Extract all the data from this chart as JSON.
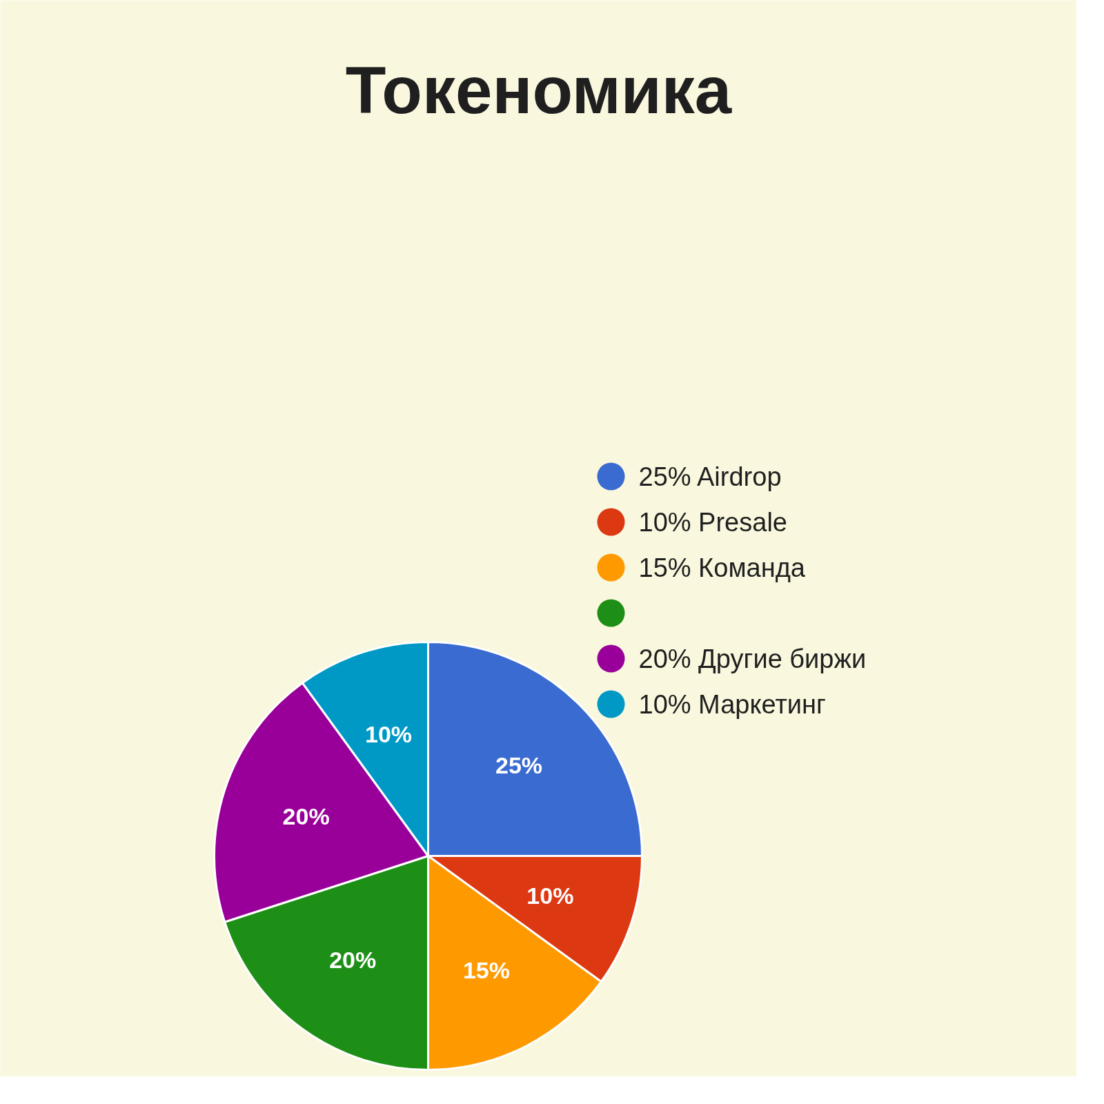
{
  "chart_data": {
    "type": "pie",
    "title": "Токеномика",
    "categories": [
      "25% Airdrop",
      "10% Presale",
      "15% Команда",
      null,
      "20% Другие биржи",
      "10% Маркетинг"
    ],
    "values": [
      25,
      10,
      15,
      20,
      20,
      10
    ],
    "value_labels": [
      "25%",
      "10%",
      "15%",
      "20%",
      "20%",
      "10%"
    ],
    "colors": [
      "#3a6bd0",
      "#dc3912",
      "#ff9900",
      "#1e8f16",
      "#990099",
      "#0099c6"
    ],
    "legend": "top right"
  }
}
